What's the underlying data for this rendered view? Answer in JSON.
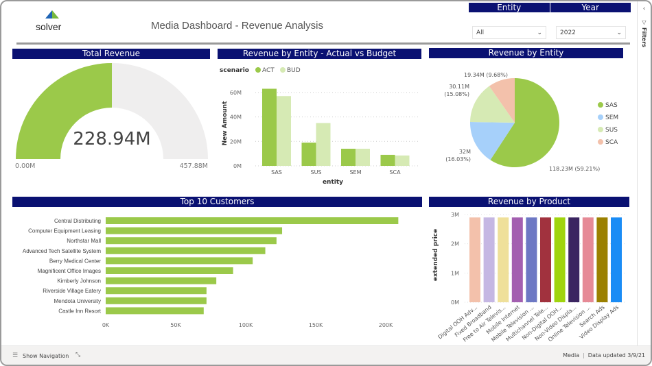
{
  "header": {
    "logo": "solver",
    "title": "Media Dashboard - Revenue Analysis"
  },
  "slicers": [
    {
      "label": "Entity",
      "value": "All"
    },
    {
      "label": "Year",
      "value": "2022"
    }
  ],
  "filters_pane": {
    "label": "Filters"
  },
  "colors": {
    "header": "#0a1172",
    "act": "#9bc94a",
    "bud": "#d6eab4",
    "gauge_bg": "#efeeee"
  },
  "gauge": {
    "title": "Total Revenue",
    "value_label": "228.94M",
    "min_label": "0.00M",
    "max_label": "457.88M",
    "fraction": 0.5
  },
  "footer": {
    "nav": "Show Navigation",
    "page": "Media",
    "updated": "Data updated 3/9/21"
  },
  "chart_data": [
    {
      "type": "bar",
      "title": "Revenue by Entity - Actual vs Budget",
      "legend_title": "scenario",
      "xlabel": "entity",
      "ylabel": "New Amount",
      "categories": [
        "SAS",
        "SUS",
        "SEM",
        "SCA"
      ],
      "yticks": [
        "0M",
        "20M",
        "40M",
        "60M"
      ],
      "ylim": [
        0,
        70
      ],
      "series": [
        {
          "name": "ACT",
          "color": "#9bc94a",
          "values": [
            63,
            19,
            14,
            9
          ]
        },
        {
          "name": "BUD",
          "color": "#d6eab4",
          "values": [
            57,
            35,
            14,
            8.5
          ]
        }
      ],
      "legend_placement": "top-left",
      "grid": true
    },
    {
      "type": "pie",
      "title": "Revenue by Entity",
      "slices": [
        {
          "label": "SAS",
          "value": 118.23,
          "text": "118.23M (59.21%)",
          "color": "#9bc94a"
        },
        {
          "label": "SEM",
          "value": 32,
          "text": "32M (16.03%)",
          "color": "#a6d0fa"
        },
        {
          "label": "SUS",
          "value": 30.11,
          "text": "30.11M (15.08%)",
          "color": "#d6eab4"
        },
        {
          "label": "SCA",
          "value": 19.34,
          "text": "19.34M (9.68%)",
          "color": "#f3c1ab"
        }
      ],
      "legend_placement": "right"
    },
    {
      "type": "bar",
      "orientation": "horizontal",
      "title": "Top 10 Customers",
      "xticks": [
        "0K",
        "50K",
        "100K",
        "150K",
        "200K"
      ],
      "xlim": [
        0,
        200
      ],
      "categories": [
        "Central Distributing",
        "Computer Equipment Leasing",
        "Northstar Mall",
        "Advanced Tech Satellite System",
        "Berry Medical Center",
        "Magnificent Office Images",
        "Kimberly Johnson",
        "Riverside Village Eatery",
        "Mendota University",
        "Castle Inn Resort"
      ],
      "values": [
        209,
        126,
        122,
        114,
        105,
        91,
        79,
        72,
        72,
        70
      ],
      "color": "#9bc94a"
    },
    {
      "type": "bar",
      "title": "Revenue by Product",
      "ylabel": "extended price",
      "yticks": [
        "0M",
        "1M",
        "2M",
        "3M"
      ],
      "ylim": [
        0,
        3
      ],
      "categories": [
        "Digital OOH Adv...",
        "Fixed Broadband",
        "Free to Air Televis...",
        "Mobile Internet",
        "Mobile Television ...",
        "Multichannel Tele...",
        "Non-Digital OOH...",
        "Non-Video Displa...",
        "Online Television ...",
        "Search Ads",
        "Video Display Ads"
      ],
      "values": [
        2.9,
        2.9,
        2.9,
        2.9,
        2.9,
        2.9,
        2.9,
        2.9,
        2.9,
        2.9,
        2.9
      ],
      "colors": [
        "#f3c1ab",
        "#c5b7e3",
        "#efe09a",
        "#a35fb0",
        "#6d78c4",
        "#a1323e",
        "#a0d40e",
        "#3b2561",
        "#e68a96",
        "#9b8000",
        "#1a8cf5"
      ]
    }
  ]
}
